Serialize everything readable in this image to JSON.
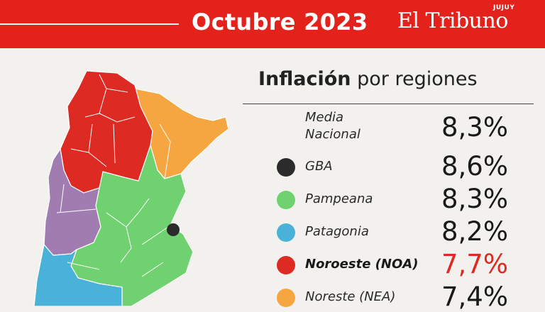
{
  "header": {
    "title": "Octubre 2023",
    "brand": "El Tribuno",
    "brand_sub": "JUJUY",
    "color": "#e3221c"
  },
  "section": {
    "title_bold": "Inflación",
    "title_rest": " por regiones"
  },
  "national": {
    "label_line1": "Media",
    "label_line2": "Nacional",
    "value": "8,3%"
  },
  "regions": [
    {
      "name": "GBA",
      "value": "8,6%",
      "color": "#2b2b2b",
      "highlight": false
    },
    {
      "name": "Pampeana",
      "value": "8,3%",
      "color": "#6fd16f",
      "highlight": false
    },
    {
      "name": "Patagonia",
      "value": "8,2%",
      "color": "#4ab2d8",
      "highlight": false
    },
    {
      "name": "Noroeste (NOA)",
      "value": "7,7%",
      "color": "#dd2a22",
      "highlight": true
    },
    {
      "name": "Noreste (NEA)",
      "value": "7,4%",
      "color": "#f5a640",
      "highlight": false
    }
  ],
  "map_colors": {
    "noa": "#dd2a22",
    "nea": "#f5a640",
    "pampeana": "#6fd16f",
    "cuyo": "#a07cb0",
    "patagonia": "#4ab2d8",
    "gba": "#2b2b2b"
  }
}
